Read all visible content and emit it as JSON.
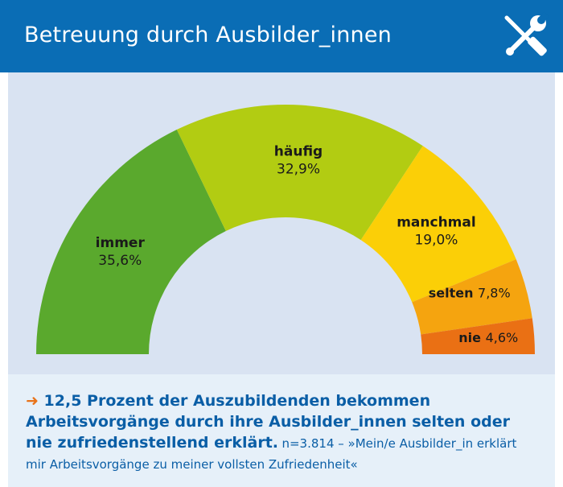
{
  "header": {
    "title": "Betreuung durch Ausbilder_innen",
    "icon": "tools-icon",
    "background": "#0a6db5"
  },
  "chart_data": {
    "type": "pie",
    "variant": "semi-donut",
    "title": "Betreuung durch Ausbilder_innen",
    "slices": [
      {
        "label": "immer",
        "value": 35.6,
        "display": "35,6%",
        "color": "#5aa92d"
      },
      {
        "label": "häufig",
        "value": 32.9,
        "display": "32,9%",
        "color": "#b2cc12"
      },
      {
        "label": "manchmal",
        "value": 19.0,
        "display": "19,0%",
        "color": "#fbcf07"
      },
      {
        "label": "selten",
        "value": 7.8,
        "display": "7,8%",
        "color": "#f5a40f"
      },
      {
        "label": "nie",
        "value": 4.6,
        "display": "4,6%",
        "color": "#ea7014"
      }
    ]
  },
  "footer": {
    "arrow": "➜",
    "headline": "12,5 Prozent der Auszubildenden bekommen Arbeitsvorgänge durch ihre Ausbilder_innen selten oder nie zufriedenstellend erklärt.",
    "source": "n=3.814 – »Mein/e Ausbilder_in erklärt mir Arbeitsvorgänge zu meiner vollsten Zufriedenheit«"
  }
}
